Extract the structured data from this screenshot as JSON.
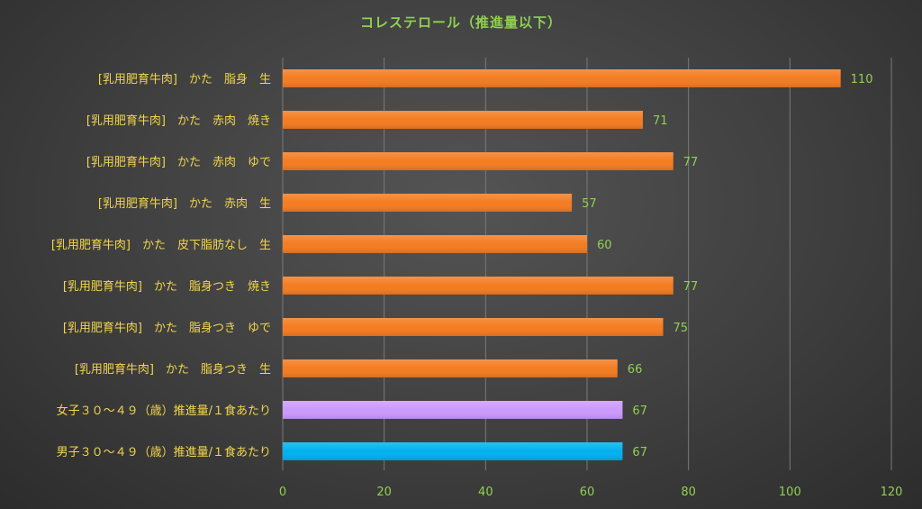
{
  "chart_data": {
    "type": "bar",
    "orientation": "horizontal",
    "title": "コレステロール（推進量以下）",
    "categories": [
      "[乳用肥育牛肉]　かた　脂身　生",
      "[乳用肥育牛肉]　かた　赤肉　焼き",
      "[乳用肥育牛肉]　かた　赤肉　ゆで",
      "[乳用肥育牛肉]　かた　赤肉　生",
      "[乳用肥育牛肉]　かた　皮下脂肪なし　生",
      "[乳用肥育牛肉]　かた　脂身つき　焼き",
      "[乳用肥育牛肉]　かた　脂身つき　ゆで",
      "[乳用肥育牛肉]　かた　脂身つき　生",
      "女子３０～４９（歳）推進量/１食あたり",
      "男子３０～４９（歳）推進量/１食あたり"
    ],
    "values": [
      110,
      71,
      77,
      57,
      60,
      77,
      75,
      66,
      67,
      67
    ],
    "bar_colors": [
      "#f47b20",
      "#f47b20",
      "#f47b20",
      "#f47b20",
      "#f47b20",
      "#f47b20",
      "#f47b20",
      "#f47b20",
      "#cc99ff",
      "#00b0f0"
    ],
    "xlim": [
      0,
      120
    ],
    "xticks": [
      0,
      20,
      40,
      60,
      80,
      100,
      120
    ],
    "xlabel": "",
    "ylabel": "",
    "grid": true,
    "legend": false
  },
  "colors": {
    "title": "#8fd14f",
    "category_label": "#f2d64b",
    "value_label": "#8fd14f",
    "gridline": "#7a7a7a"
  }
}
